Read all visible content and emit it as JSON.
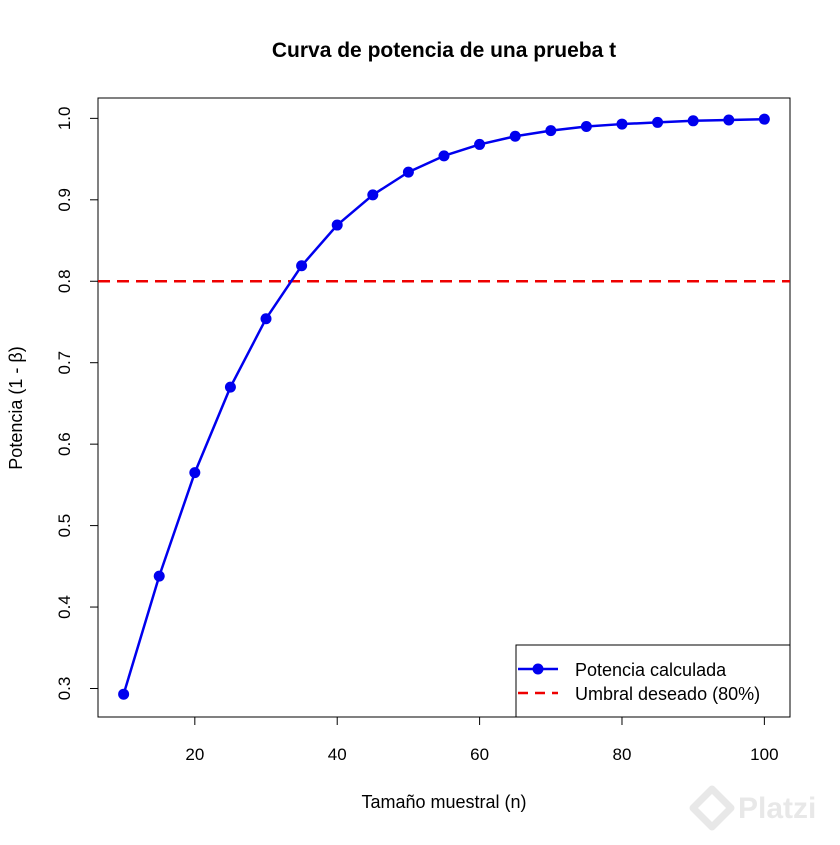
{
  "chart_data": {
    "type": "line",
    "title": "Curva de potencia de una prueba t",
    "xlabel": "Tamaño muestral (n)",
    "ylabel": "Potencia (1 - β)",
    "xlim": [
      6.4,
      103.6
    ],
    "ylim": [
      0.265,
      1.025
    ],
    "x_ticks": [
      20,
      40,
      60,
      80,
      100
    ],
    "y_ticks": [
      0.3,
      0.4,
      0.5,
      0.6,
      0.7,
      0.8,
      0.9,
      1.0
    ],
    "x_tick_labels": [
      "20",
      "40",
      "60",
      "80",
      "100"
    ],
    "y_tick_labels": [
      "0.3",
      "0.4",
      "0.5",
      "0.6",
      "0.7",
      "0.8",
      "0.9",
      "1.0"
    ],
    "series": [
      {
        "name": "Potencia calculada",
        "color": "#0000ee",
        "style": "line-with-points",
        "x": [
          10,
          15,
          20,
          25,
          30,
          35,
          40,
          45,
          50,
          55,
          60,
          65,
          70,
          75,
          80,
          85,
          90,
          95,
          100
        ],
        "y": [
          0.293,
          0.438,
          0.565,
          0.67,
          0.754,
          0.819,
          0.869,
          0.906,
          0.934,
          0.954,
          0.968,
          0.978,
          0.985,
          0.99,
          0.993,
          0.995,
          0.997,
          0.998,
          0.999
        ]
      }
    ],
    "reference_lines": [
      {
        "name": "Umbral deseado (80%)",
        "orientation": "horizontal",
        "y": 0.8,
        "color": "#ee0000",
        "style": "dashed"
      }
    ],
    "legend": {
      "placement": "bottom-right",
      "entries": [
        "Potencia calculada",
        "Umbral deseado (80%)"
      ]
    },
    "grid": false
  },
  "watermark": {
    "text": "Platzi",
    "icon": "platzi-logo-icon"
  }
}
